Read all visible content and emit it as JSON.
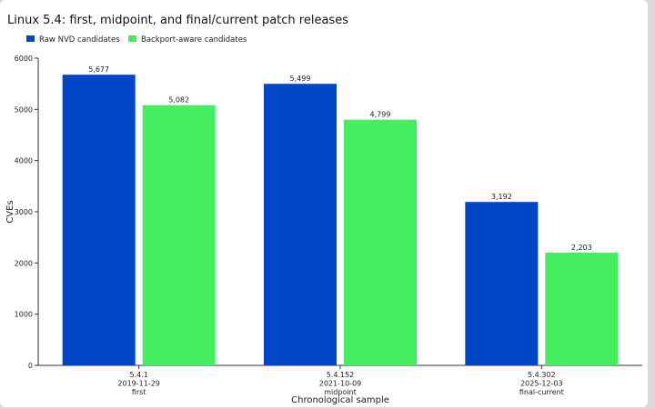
{
  "chart_data": {
    "type": "bar",
    "title": "Linux 5.4: first, midpoint, and final/current patch releases",
    "xlabel": "Chronological sample",
    "ylabel": "CVEs",
    "ylim": [
      0,
      6000
    ],
    "yticks": [
      0,
      1000,
      2000,
      3000,
      4000,
      5000,
      6000
    ],
    "grid": false,
    "legend_position": "top-left",
    "categories": [
      [
        "5.4.1",
        "2019-11-29",
        "first"
      ],
      [
        "5.4.152",
        "2021-10-09",
        "midpoint"
      ],
      [
        "5.4.302",
        "2025-12-03",
        "final-current"
      ]
    ],
    "series": [
      {
        "name": "Raw NVD candidates",
        "color": "#0047c8",
        "values": [
          5677,
          5499,
          3192
        ],
        "labels": [
          "5,677",
          "5,499",
          "3,192"
        ]
      },
      {
        "name": "Backport-aware candidates",
        "color": "#45ee5e",
        "values": [
          5082,
          4799,
          2203
        ],
        "labels": [
          "5,082",
          "4,799",
          "2,203"
        ]
      }
    ]
  }
}
